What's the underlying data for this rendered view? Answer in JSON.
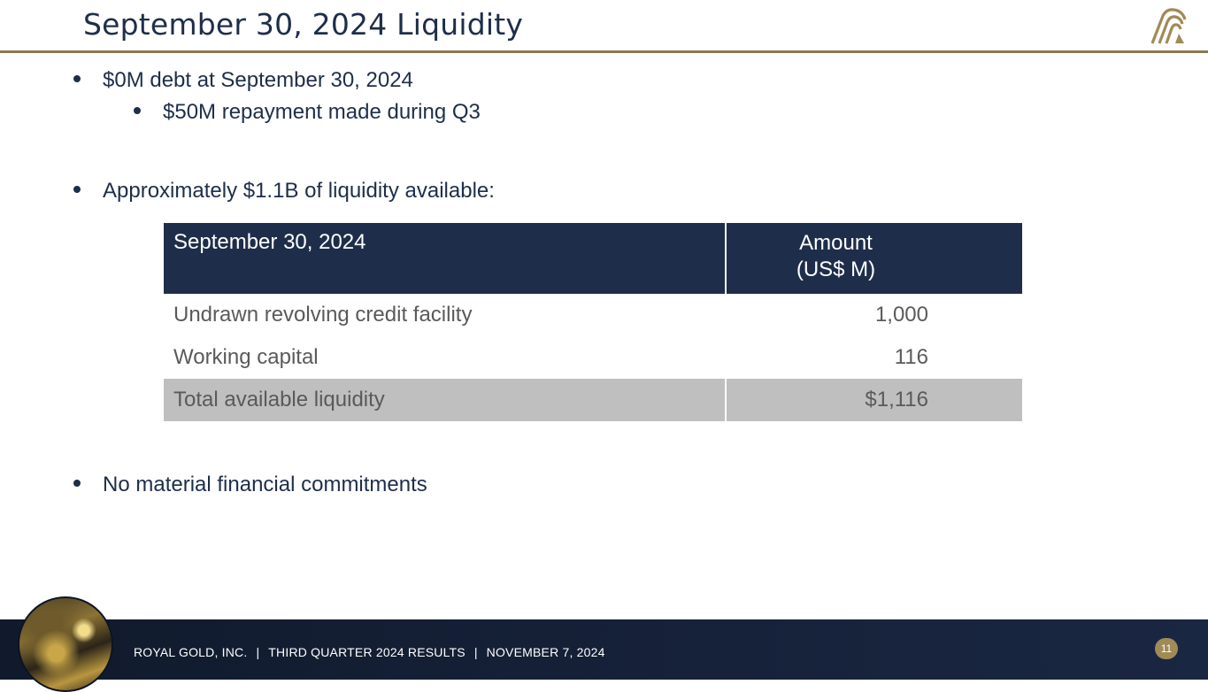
{
  "slide": {
    "title": "September 30, 2024 Liquidity",
    "page_number": "11"
  },
  "bullets": {
    "debt": "$0M debt at September 30, 2024",
    "repayment": "$50M repayment made during Q3",
    "liquidity": "Approximately $1.1B of liquidity available:",
    "commitments": "No material financial commitments"
  },
  "table": {
    "header_col1": "September 30, 2024",
    "header_col2_line1": "Amount",
    "header_col2_line2": "(US$ M)",
    "rows": [
      {
        "label": "Undrawn revolving credit facility",
        "value": "1,000"
      },
      {
        "label": "Working capital",
        "value": "116"
      }
    ],
    "total": {
      "label": "Total available liquidity",
      "value": "$1,116"
    }
  },
  "footer": {
    "company": "ROYAL GOLD, INC.",
    "separator": "|",
    "report": "THIRD QUARTER 2024 RESULTS",
    "date": "NOVEMBER 7, 2024"
  },
  "colors": {
    "navy": "#1e2e4a",
    "gold": "#8b7a52",
    "total_row": "#bfbfbf"
  },
  "icons": {
    "brand_logo": "royal-gold-logo-icon",
    "footer_image": "gold-bars-photo"
  }
}
